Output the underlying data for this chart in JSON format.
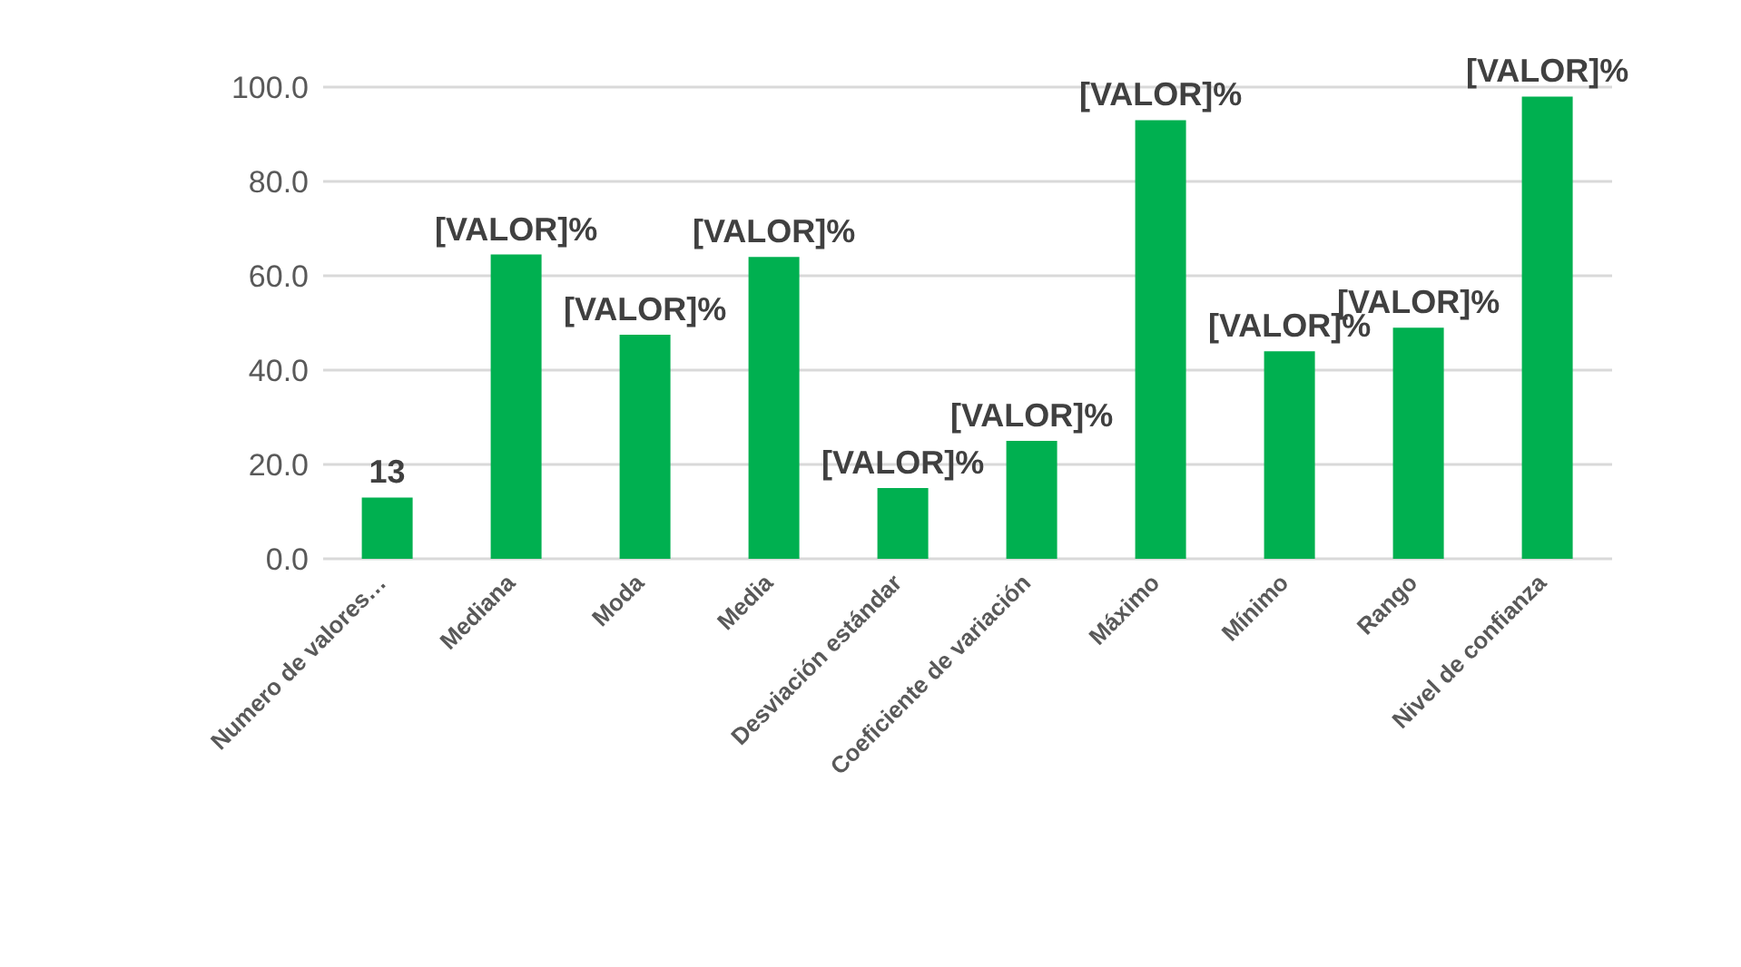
{
  "chart_data": {
    "type": "bar",
    "categories": [
      "Numero de valores…",
      "Mediana",
      "Moda",
      "Media",
      "Desviación estándar",
      "Coeficiente de variación",
      "Máximo",
      "Mínimo",
      "Rango",
      "Nivel de confianza"
    ],
    "values": [
      13,
      64.5,
      47.5,
      64,
      15,
      25,
      93,
      44,
      49,
      98
    ],
    "value_labels": [
      "13",
      "[VALOR]%",
      "[VALOR]%",
      "[VALOR]%",
      "[VALOR]%",
      "[VALOR]%",
      "[VALOR]%",
      "[VALOR]%",
      "[VALOR]%",
      "[VALOR]%"
    ],
    "color": "#00b050",
    "ylim": [
      0,
      100
    ],
    "yticks": [
      {
        "value": 0,
        "label": "0.0"
      },
      {
        "value": 20,
        "label": "20.0"
      },
      {
        "value": 40,
        "label": "40.0"
      },
      {
        "value": 60,
        "label": "60.0"
      },
      {
        "value": 80,
        "label": "80.0"
      },
      {
        "value": 100,
        "label": "100.0"
      }
    ],
    "grid": "y"
  }
}
